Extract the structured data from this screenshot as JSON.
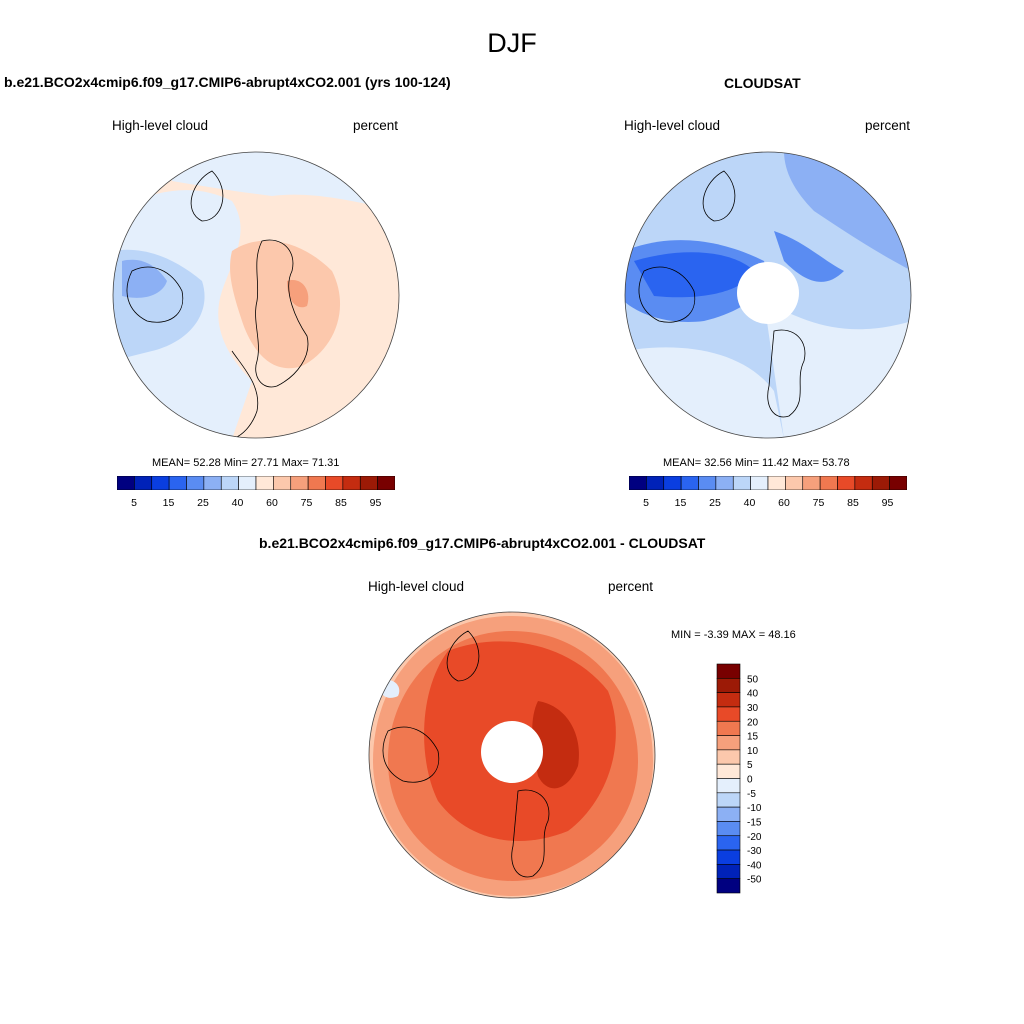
{
  "page_title": "DJF",
  "panels": [
    {
      "title": "b.e21.BCO2x4cmip6.f09_g17.CMIP6-abrupt4xCO2.001 (yrs 100-124)",
      "left_label": "High-level cloud",
      "right_label": "percent",
      "stats_text": "MEAN=  52.28  Min=  27.71  Max=  71.31",
      "stats": {
        "mean": 52.28,
        "min": 27.71,
        "max": 71.31
      }
    },
    {
      "title": "CLOUDSAT",
      "left_label": "High-level cloud",
      "right_label": "percent",
      "stats_text": "MEAN=  32.56  Min=  11.42  Max=  53.78",
      "stats": {
        "mean": 32.56,
        "min": 11.42,
        "max": 53.78
      }
    },
    {
      "title": "b.e21.BCO2x4cmip6.f09_g17.CMIP6-abrupt4xCO2.001 - CLOUDSAT",
      "left_label": "High-level cloud",
      "right_label": "percent",
      "stats_text": "MIN =  -3.39 MAX =  48.16",
      "stats": {
        "min": -3.39,
        "max": 48.16
      }
    }
  ],
  "horizontal_colorbar": {
    "colors": [
      "#000080",
      "#0022b8",
      "#0a3ee0",
      "#2a64f0",
      "#5a8cf2",
      "#8cb0f4",
      "#bcd6f8",
      "#e4effc",
      "#ffe8d8",
      "#fcc8ac",
      "#f6a07c",
      "#f07850",
      "#e84a28",
      "#c42c10",
      "#9c1a06",
      "#780000"
    ],
    "tick_labels": [
      "5",
      "15",
      "25",
      "40",
      "60",
      "75",
      "85",
      "95"
    ]
  },
  "vertical_colorbar": {
    "colors": [
      "#000080",
      "#0022b8",
      "#0a3ee0",
      "#2a64f0",
      "#5a8cf2",
      "#8cb0f4",
      "#bcd6f8",
      "#e4effc",
      "#ffe8d8",
      "#fcc8ac",
      "#f6a07c",
      "#f07850",
      "#e84a28",
      "#c42c10",
      "#9c1a06",
      "#780000"
    ],
    "tick_labels": [
      "50",
      "40",
      "30",
      "20",
      "15",
      "10",
      "5",
      "0",
      "-5",
      "-10",
      "-15",
      "-20",
      "-30",
      "-40",
      "-50"
    ]
  }
}
